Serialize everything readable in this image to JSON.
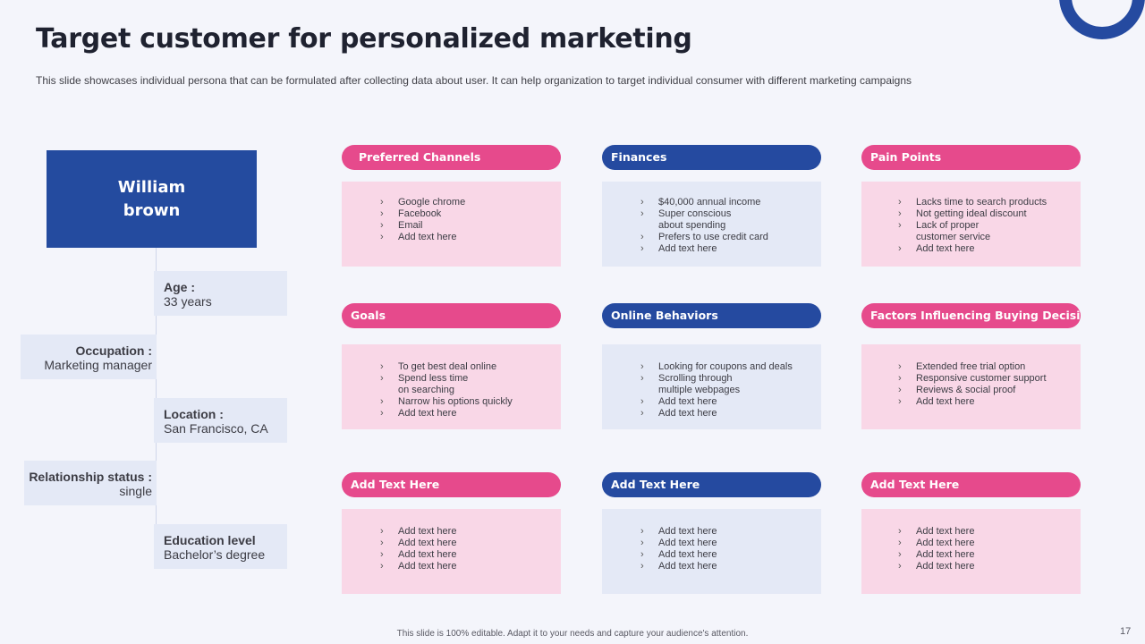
{
  "title": "Target customer for personalized marketing",
  "subtitle": "This slide showcases individual persona that can be formulated after collecting data about user. It can help organization to target individual consumer with different marketing campaigns",
  "persona": {
    "name_line1": "William",
    "name_line2": "brown",
    "age_label": "Age :",
    "age_value": "33 years",
    "occupation_label": "Occupation  :",
    "occupation_value": "Marketing manager",
    "location_label": "Location :",
    "location_value": "San Francisco, CA",
    "relationship_label": "Relationship status  :",
    "relationship_value": "single",
    "education_label": "Education level",
    "education_value": "Bachelor’s degree"
  },
  "cards": [
    {
      "title": "Preferred Channels",
      "color": "pink",
      "items": [
        {
          "text": "Google chrome",
          "bullet": true
        },
        {
          "text": "Facebook",
          "bullet": true
        },
        {
          "text": "Email",
          "bullet": true
        },
        {
          "text": "Add text here",
          "bullet": true
        }
      ]
    },
    {
      "title": "Finances",
      "color": "blue",
      "items": [
        {
          "text": "$40,000 annual income",
          "bullet": true
        },
        {
          "text": "Super conscious",
          "bullet": true
        },
        {
          "text": "about spending",
          "bullet": false
        },
        {
          "text": "Prefers to use credit card",
          "bullet": true
        },
        {
          "text": "Add text here",
          "bullet": true
        }
      ]
    },
    {
      "title": "Pain Points",
      "color": "pink",
      "items": [
        {
          "text": "Lacks time to search products",
          "bullet": true
        },
        {
          "text": "Not getting ideal discount",
          "bullet": true
        },
        {
          "text": "Lack of proper",
          "bullet": true
        },
        {
          "text": "customer service",
          "bullet": false
        },
        {
          "text": "Add text here",
          "bullet": true
        }
      ]
    },
    {
      "title": "Goals",
      "color": "pink",
      "items": [
        {
          "text": "To get best deal online",
          "bullet": true
        },
        {
          "text": "Spend less time",
          "bullet": true
        },
        {
          "text": "on searching",
          "bullet": false
        },
        {
          "text": "Narrow his options quickly",
          "bullet": true
        },
        {
          "text": "Add text here",
          "bullet": true
        }
      ]
    },
    {
      "title": "Online Behaviors",
      "color": "blue",
      "items": [
        {
          "text": "Looking  for coupons and deals",
          "bullet": true
        },
        {
          "text": "Scrolling through",
          "bullet": true
        },
        {
          "text": "multiple  webpages",
          "bullet": false
        },
        {
          "text": "Add text here",
          "bullet": true
        },
        {
          "text": "Add text here",
          "bullet": true
        }
      ]
    },
    {
      "title": "Factors Influencing Buying Decisions",
      "color": "pink",
      "items": [
        {
          "text": "Extended free trial option",
          "bullet": true
        },
        {
          "text": "Responsive customer support",
          "bullet": true
        },
        {
          "text": "Reviews & social proof",
          "bullet": true
        },
        {
          "text": "Add text here",
          "bullet": true
        }
      ]
    },
    {
      "title": "Add Text Here",
      "color": "pink",
      "items": [
        {
          "text": "Add text here",
          "bullet": true
        },
        {
          "text": "Add text here",
          "bullet": true
        },
        {
          "text": "Add text here",
          "bullet": true
        },
        {
          "text": "Add text here",
          "bullet": true
        }
      ]
    },
    {
      "title": "Add Text Here",
      "color": "blue",
      "items": [
        {
          "text": "Add text here",
          "bullet": true
        },
        {
          "text": "Add text here",
          "bullet": true
        },
        {
          "text": "Add text here",
          "bullet": true
        },
        {
          "text": "Add text here",
          "bullet": true
        }
      ]
    },
    {
      "title": "Add Text Here",
      "color": "pink",
      "items": [
        {
          "text": "Add text here",
          "bullet": true
        },
        {
          "text": "Add text here",
          "bullet": true
        },
        {
          "text": "Add text here",
          "bullet": true
        },
        {
          "text": "Add text here",
          "bullet": true
        }
      ]
    }
  ],
  "footer": "This slide is 100% editable.  Adapt it to your needs and capture your audience's attention.",
  "page_number": "17",
  "colors": {
    "pink": "#e64a8c",
    "blue": "#254aa0",
    "pink_light": "#f9d7e7",
    "blue_light": "#e4e9f6"
  }
}
